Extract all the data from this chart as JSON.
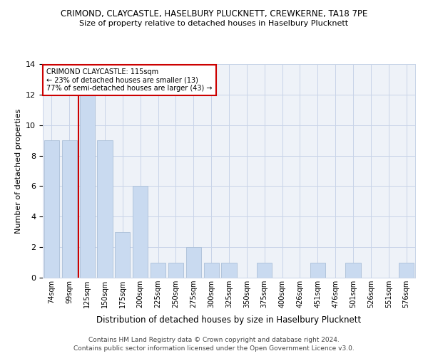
{
  "title1": "CRIMOND, CLAYCASTLE, HASELBURY PLUCKNETT, CREWKERNE, TA18 7PE",
  "title2": "Size of property relative to detached houses in Haselbury Plucknett",
  "xlabel": "Distribution of detached houses by size in Haselbury Plucknett",
  "ylabel": "Number of detached properties",
  "footer1": "Contains HM Land Registry data © Crown copyright and database right 2024.",
  "footer2": "Contains public sector information licensed under the Open Government Licence v3.0.",
  "annotation_line1": "CRIMOND CLAYCASTLE: 115sqm",
  "annotation_line2": "← 23% of detached houses are smaller (13)",
  "annotation_line3": "77% of semi-detached houses are larger (43) →",
  "bar_labels": [
    "74sqm",
    "99sqm",
    "125sqm",
    "150sqm",
    "175sqm",
    "200sqm",
    "225sqm",
    "250sqm",
    "275sqm",
    "300sqm",
    "325sqm",
    "350sqm",
    "375sqm",
    "400sqm",
    "426sqm",
    "451sqm",
    "476sqm",
    "501sqm",
    "526sqm",
    "551sqm",
    "576sqm"
  ],
  "bar_values": [
    9,
    9,
    12,
    9,
    3,
    6,
    1,
    1,
    2,
    1,
    1,
    0,
    1,
    0,
    0,
    1,
    0,
    1,
    0,
    0,
    1
  ],
  "bar_color": "#c9daf0",
  "bar_edge_color": "#aabfd8",
  "red_line_x": 1.5,
  "ylim": [
    0,
    14
  ],
  "yticks": [
    0,
    2,
    4,
    6,
    8,
    10,
    12,
    14
  ],
  "grid_color": "#c8d4e8",
  "annotation_box_color": "#cc0000",
  "bg_color": "#eef2f8"
}
